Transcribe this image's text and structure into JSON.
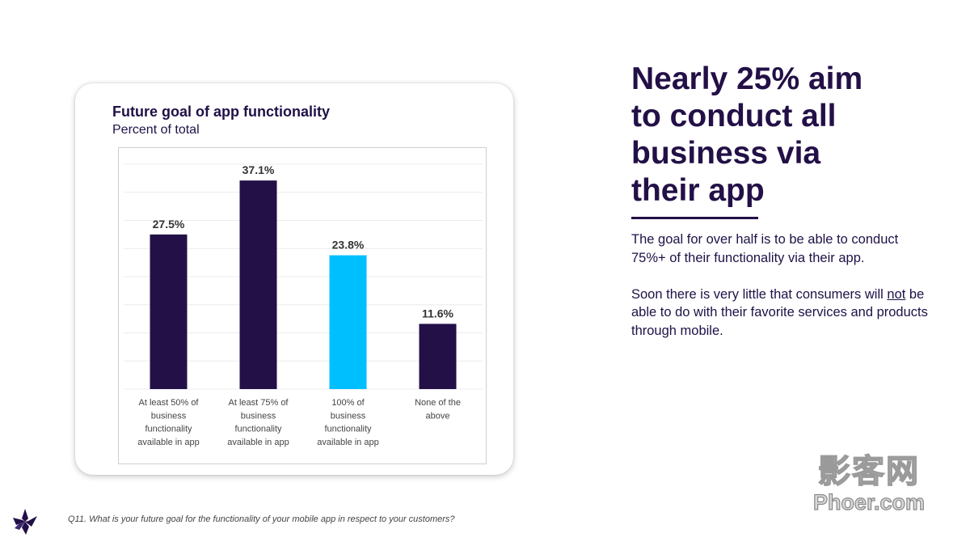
{
  "chart_data": {
    "type": "bar",
    "title": "Future goal of app functionality",
    "subtitle": "Percent of total",
    "categories": [
      [
        "At least 50% of",
        "business",
        "functionality",
        "available in app"
      ],
      [
        "At least 75% of",
        "business",
        "functionality",
        "available in app"
      ],
      [
        "100% of",
        "business",
        "functionality",
        "available in app"
      ],
      [
        "None of the",
        "above"
      ]
    ],
    "values": [
      27.5,
      37.1,
      23.8,
      11.6
    ],
    "value_labels": [
      "27.5%",
      "37.1%",
      "23.8%",
      "11.6%"
    ],
    "colors": [
      "#231047",
      "#231047",
      "#00bfff",
      "#231047"
    ],
    "ylim": [
      0,
      40
    ],
    "grid": true,
    "xlabel": "",
    "ylabel": ""
  },
  "headline": {
    "lines": [
      "Nearly 25% aim",
      "to conduct all",
      "business via",
      "their app"
    ]
  },
  "body": {
    "paragraph1": "The goal for over half is to be able to conduct 75%+ of their functionality via their app.",
    "paragraph2_before": "Soon there is very little that consumers will ",
    "paragraph2_underlined": "not",
    "paragraph2_after": " be able to do with their favorite services and products through mobile."
  },
  "footnote": "Q11. What is your future goal for the functionality of your mobile app in respect to your customers?",
  "watermark": {
    "chinese": "影客网",
    "latin": "Phoer.com"
  }
}
